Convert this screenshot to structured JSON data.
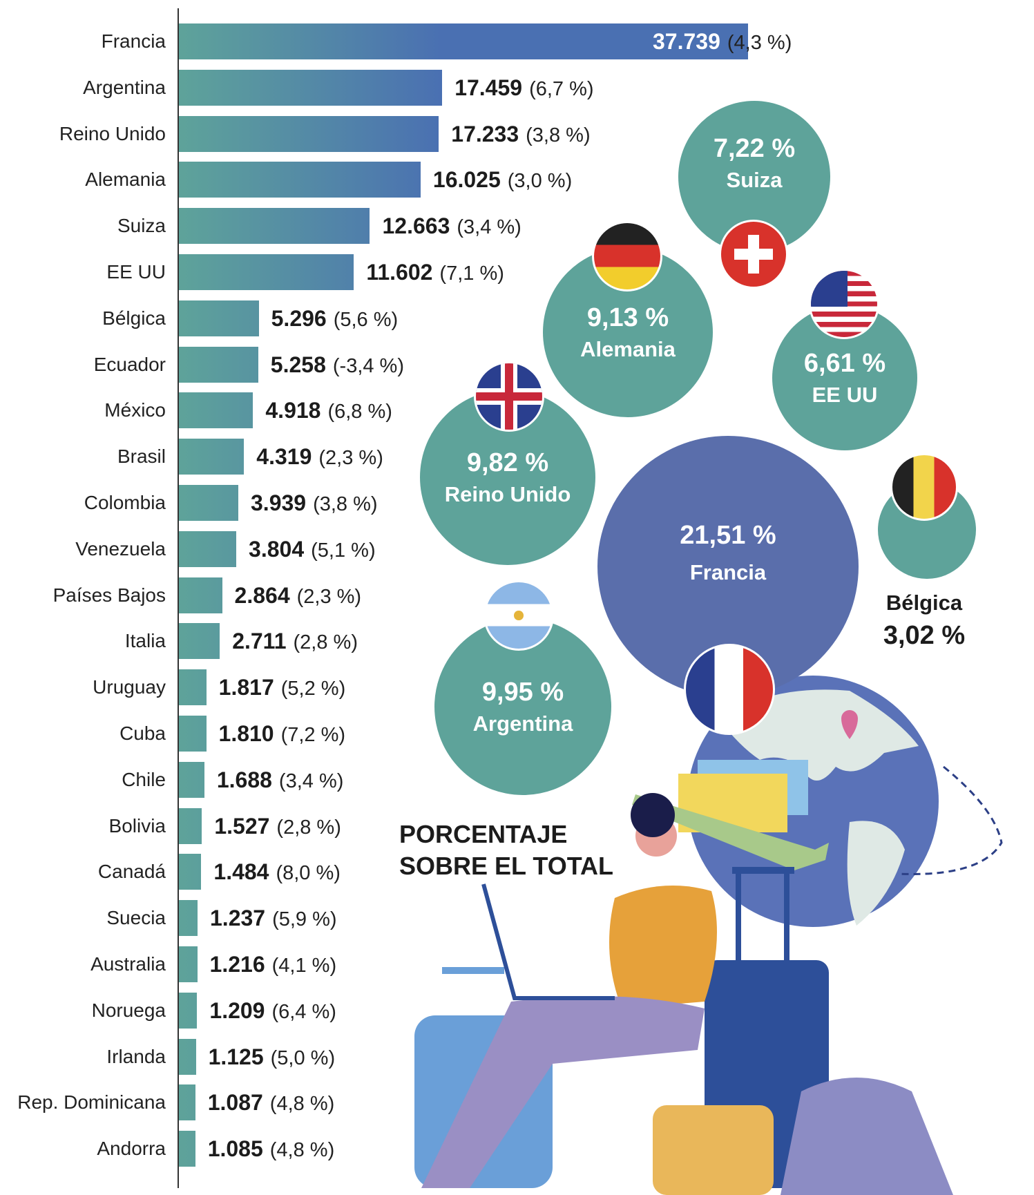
{
  "chart_data": {
    "type": "bar",
    "orientation": "horizontal",
    "categories": [
      "Francia",
      "Argentina",
      "Reino Unido",
      "Alemania",
      "Suiza",
      "EE UU",
      "Bélgica",
      "Ecuador",
      "México",
      "Brasil",
      "Colombia",
      "Venezuela",
      "Países Bajos",
      "Italia",
      "Uruguay",
      "Cuba",
      "Chile",
      "Bolivia",
      "Canadá",
      "Suecia",
      "Australia",
      "Noruega",
      "Irlanda",
      "Rep. Dominicana",
      "Andorra"
    ],
    "values": [
      37739,
      17459,
      17233,
      16025,
      12663,
      11602,
      5296,
      5258,
      4918,
      4319,
      3939,
      3804,
      2864,
      2711,
      1817,
      1810,
      1688,
      1527,
      1484,
      1237,
      1216,
      1209,
      1125,
      1087,
      1085
    ],
    "value_labels": [
      "37.739",
      "17.459",
      "17.233",
      "16.025",
      "12.663",
      "11.602",
      "5.296",
      "5.258",
      "4.918",
      "4.319",
      "3.939",
      "3.804",
      "2.864",
      "2.711",
      "1.817",
      "1.810",
      "1.688",
      "1.527",
      "1.484",
      "1.237",
      "1.216",
      "1.209",
      "1.125",
      "1.087",
      "1.085"
    ],
    "change_labels": [
      "(4,3 %)",
      "(6,7 %)",
      "(3,8 %)",
      "(3,0 %)",
      "(3,4 %)",
      "(7,1 %)",
      "(5,6 %)",
      "(-3,4 %)",
      "(6,8 %)",
      "(2,3 %)",
      "(3,8 %)",
      "(5,1 %)",
      "(2,3 %)",
      "(2,8 %)",
      "(5,2 %)",
      "(7,2 %)",
      "(3,4 %)",
      "(2,8 %)",
      "(8,0 %)",
      "(5,9 %)",
      "(4,1 %)",
      "(6,4 %)",
      "(5,0 %)",
      "(4,8 %)",
      "(4,8 %)"
    ],
    "colors": {
      "bar_start": "#5ea39a",
      "bar_end": "#4a70b2"
    }
  },
  "share_chart": {
    "title_line1": "PORCENTAJE",
    "title_line2": "SOBRE EL TOTAL",
    "bubbles": [
      {
        "country": "Suiza",
        "percent": "7,22 %",
        "value": 7.22,
        "flag": "switzerland-flag",
        "color": "#5ea39a"
      },
      {
        "country": "Alemania",
        "percent": "9,13 %",
        "value": 9.13,
        "flag": "germany-flag",
        "color": "#5ea39a"
      },
      {
        "country": "EE UU",
        "percent": "6,61 %",
        "value": 6.61,
        "flag": "usa-flag",
        "color": "#5ea39a"
      },
      {
        "country": "Reino Unido",
        "percent": "9,82 %",
        "value": 9.82,
        "flag": "uk-flag",
        "color": "#5ea39a"
      },
      {
        "country": "Francia",
        "percent": "21,51 %",
        "value": 21.51,
        "flag": "france-flag",
        "color": "#5a6eab"
      },
      {
        "country": "Bélgica",
        "percent": "3,02 %",
        "value": 3.02,
        "flag": "belgium-flag",
        "color": "#5ea39a"
      },
      {
        "country": "Argentina",
        "percent": "9,95 %",
        "value": 9.95,
        "flag": "argentina-flag",
        "color": "#5ea39a"
      }
    ]
  }
}
